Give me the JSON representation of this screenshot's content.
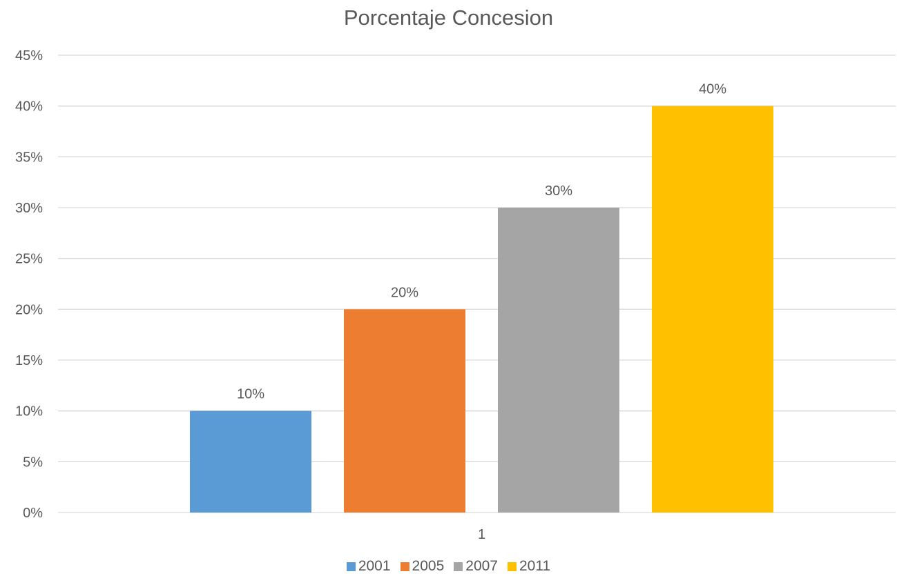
{
  "chart_data": {
    "type": "bar",
    "title": "Porcentaje Concesion",
    "categories": [
      "1"
    ],
    "series": [
      {
        "name": "2001",
        "values": [
          10
        ],
        "color": "#5B9BD5",
        "label": "10%"
      },
      {
        "name": "2005",
        "values": [
          20
        ],
        "color": "#ED7D31",
        "label": "20%"
      },
      {
        "name": "2007",
        "values": [
          30
        ],
        "color": "#A5A5A5",
        "label": "30%"
      },
      {
        "name": "2011",
        "values": [
          40
        ],
        "color": "#FFC000",
        "label": "40%"
      }
    ],
    "yticks": [
      "0%",
      "5%",
      "10%",
      "15%",
      "20%",
      "25%",
      "30%",
      "35%",
      "40%",
      "45%"
    ],
    "ylim": [
      0,
      45
    ],
    "xlabel": "",
    "ylabel": "",
    "grid": true,
    "legend_position": "bottom"
  },
  "colors": {
    "gridline": "#D9D9D9",
    "text": "#595959"
  }
}
